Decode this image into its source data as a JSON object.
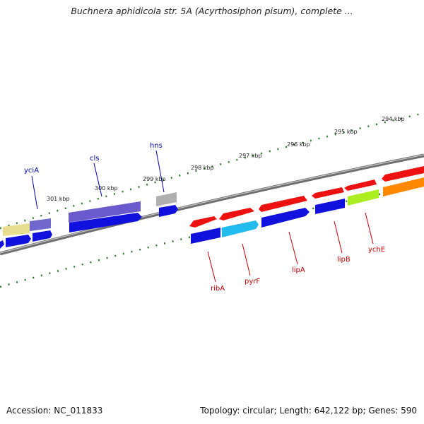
{
  "title": "Buchnera aphidicola str. 5A (Acyrthosiphon pisum), complete ...",
  "footer": {
    "accession": "Accession: NC_011833",
    "summary": "Topology: circular; Length: 642,122 bp; Genes: 590"
  },
  "scale_labels": [
    "294 kbp",
    "295 kbp",
    "296 kbp",
    "297 kbp",
    "298 kbp",
    "299 kbp",
    "300 kbp",
    "301 kbp"
  ],
  "gene_labels_above": [
    "yciA",
    "cls",
    "hns"
  ],
  "gene_labels_below": [
    "ribA",
    "pyrF",
    "lipA",
    "lipB",
    "ychE"
  ],
  "colors": {
    "backbone": "#7a7a7a",
    "ticks": "#2e7d2e",
    "label_above": "#0000aa",
    "label_below": "#cc0000",
    "red": "#ee1111",
    "blue": "#1111dd",
    "purple": "#6a5acd",
    "cyan": "#22bbee",
    "green": "#aaee22",
    "orange": "#ff8800",
    "yellow": "#eedd88",
    "gray": "#b0b0b0"
  }
}
